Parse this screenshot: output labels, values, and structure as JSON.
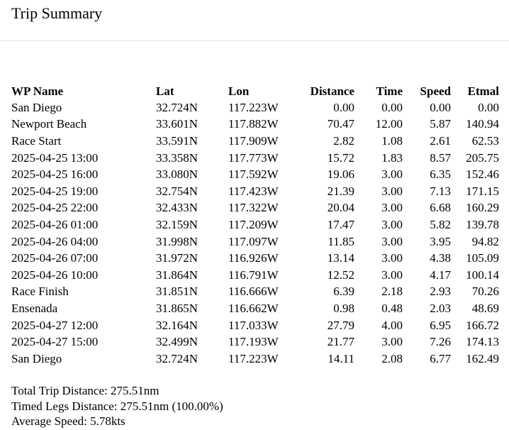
{
  "page": {
    "title": "Trip Summary"
  },
  "table": {
    "headers": {
      "name": "WP Name",
      "lat": "Lat",
      "lon": "Lon",
      "distance": "Distance",
      "time": "Time",
      "speed": "Speed",
      "etmal": "Etmal"
    },
    "rows": [
      {
        "name": "San Diego",
        "lat": "32.724N",
        "lon": "117.223W",
        "distance": "0.00",
        "time": "0.00",
        "speed": "0.00",
        "etmal": "0.00"
      },
      {
        "name": "Newport Beach",
        "lat": "33.601N",
        "lon": "117.882W",
        "distance": "70.47",
        "time": "12.00",
        "speed": "5.87",
        "etmal": "140.94"
      },
      {
        "name": "Race Start",
        "lat": "33.591N",
        "lon": "117.909W",
        "distance": "2.82",
        "time": "1.08",
        "speed": "2.61",
        "etmal": "62.53"
      },
      {
        "name": "2025-04-25 13:00",
        "lat": "33.358N",
        "lon": "117.773W",
        "distance": "15.72",
        "time": "1.83",
        "speed": "8.57",
        "etmal": "205.75"
      },
      {
        "name": "2025-04-25 16:00",
        "lat": "33.080N",
        "lon": "117.592W",
        "distance": "19.06",
        "time": "3.00",
        "speed": "6.35",
        "etmal": "152.46"
      },
      {
        "name": "2025-04-25 19:00",
        "lat": "32.754N",
        "lon": "117.423W",
        "distance": "21.39",
        "time": "3.00",
        "speed": "7.13",
        "etmal": "171.15"
      },
      {
        "name": "2025-04-25 22:00",
        "lat": "32.433N",
        "lon": "117.322W",
        "distance": "20.04",
        "time": "3.00",
        "speed": "6.68",
        "etmal": "160.29"
      },
      {
        "name": "2025-04-26 01:00",
        "lat": "32.159N",
        "lon": "117.209W",
        "distance": "17.47",
        "time": "3.00",
        "speed": "5.82",
        "etmal": "139.78"
      },
      {
        "name": "2025-04-26 04:00",
        "lat": "31.998N",
        "lon": "117.097W",
        "distance": "11.85",
        "time": "3.00",
        "speed": "3.95",
        "etmal": "94.82"
      },
      {
        "name": "2025-04-26 07:00",
        "lat": "31.972N",
        "lon": "116.926W",
        "distance": "13.14",
        "time": "3.00",
        "speed": "4.38",
        "etmal": "105.09"
      },
      {
        "name": "2025-04-26 10:00",
        "lat": "31.864N",
        "lon": "116.791W",
        "distance": "12.52",
        "time": "3.00",
        "speed": "4.17",
        "etmal": "100.14"
      },
      {
        "name": "Race Finish",
        "lat": "31.851N",
        "lon": "116.666W",
        "distance": "6.39",
        "time": "2.18",
        "speed": "2.93",
        "etmal": "70.26"
      },
      {
        "name": "Ensenada",
        "lat": "31.865N",
        "lon": "116.662W",
        "distance": "0.98",
        "time": "0.48",
        "speed": "2.03",
        "etmal": "48.69"
      },
      {
        "name": "2025-04-27 12:00",
        "lat": "32.164N",
        "lon": "117.033W",
        "distance": "27.79",
        "time": "4.00",
        "speed": "6.95",
        "etmal": "166.72"
      },
      {
        "name": "2025-04-27 15:00",
        "lat": "32.499N",
        "lon": "117.193W",
        "distance": "21.77",
        "time": "3.00",
        "speed": "7.26",
        "etmal": "174.13"
      },
      {
        "name": "San Diego",
        "lat": "32.724N",
        "lon": "117.223W",
        "distance": "14.11",
        "time": "2.08",
        "speed": "6.77",
        "etmal": "162.49"
      }
    ]
  },
  "totals": {
    "total_trip_distance": "Total Trip Distance: 275.51nm",
    "timed_legs_distance": "Timed Legs Distance: 275.51nm (100.00%)",
    "average_speed": "Average Speed: 5.78kts"
  }
}
